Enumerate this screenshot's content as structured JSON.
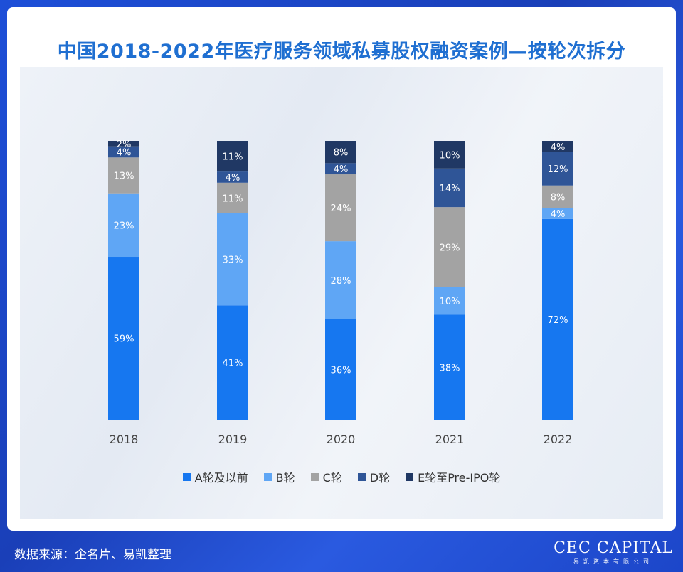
{
  "title": "中国2018-2022年医疗服务领域私募股权融资案例—按轮次拆分",
  "chart_data": {
    "type": "bar",
    "stacked": true,
    "categories": [
      "2018",
      "2019",
      "2020",
      "2021",
      "2022"
    ],
    "series": [
      {
        "name": "A轮及以前",
        "color": "#1677f0",
        "values": [
          59,
          41,
          36,
          38,
          72
        ]
      },
      {
        "name": "B轮",
        "color": "#5fa6f5",
        "values": [
          23,
          33,
          28,
          10,
          4
        ]
      },
      {
        "name": "C轮",
        "color": "#a3a3a3",
        "values": [
          13,
          11,
          24,
          29,
          8
        ]
      },
      {
        "name": "D轮",
        "color": "#2f5597",
        "values": [
          4,
          4,
          4,
          14,
          12
        ]
      },
      {
        "name": "E轮至Pre-IPO轮",
        "color": "#203864",
        "values": [
          2,
          11,
          8,
          10,
          4
        ]
      }
    ],
    "ylim": [
      0,
      100
    ],
    "legend_position": "bottom"
  },
  "footer": {
    "source": "数据来源：企名片、易凯整理",
    "logo": "CEC CAPITAL",
    "logo_sub": "易凯资本有限公司"
  }
}
